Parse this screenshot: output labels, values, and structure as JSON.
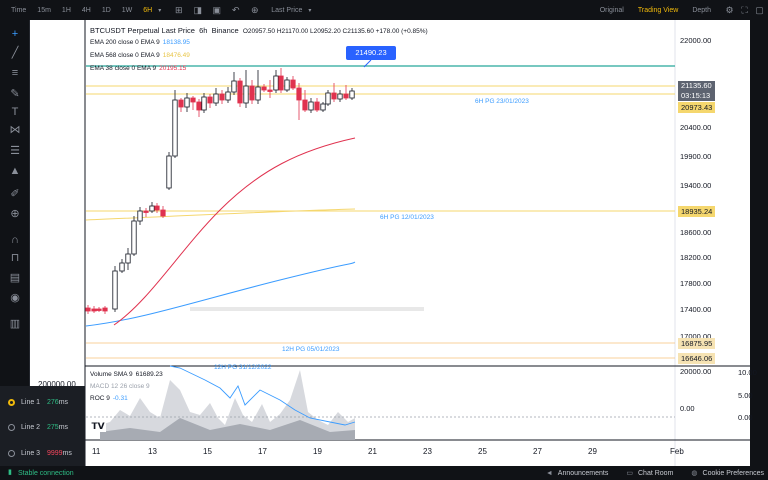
{
  "toolbar": {
    "timeframes": [
      "Time",
      "15m",
      "1H",
      "4H",
      "1D",
      "1W",
      "6H"
    ],
    "active_timeframe": "6H",
    "price_mode": "Last Price",
    "views": [
      "Original",
      "Trading View",
      "Depth"
    ],
    "active_view": "Trading View",
    "icons": [
      "chevron-down-icon",
      "bar-style-icon",
      "indicators-icon",
      "camera-icon",
      "undo-icon",
      "add-icon",
      "chevron-down-icon",
      "settings-icon",
      "fullscreen-icon",
      "screenshot-icon"
    ]
  },
  "left_tools": [
    "crosshair-icon",
    "trendline-icon",
    "fib-icon",
    "brush-icon",
    "text-icon",
    "pattern-icon",
    "measure-icon",
    "prediction-icon",
    "ruler-icon",
    "zoom-icon",
    "magnet-icon",
    "lock-icon",
    "lock-drawings-icon",
    "eye-icon",
    "trash-icon"
  ],
  "chart": {
    "title": "BTCUSDT Perpetual Last Price",
    "interval": "6h",
    "exchange": "Binance",
    "ohlc": "O20957.50  H21170.00  L20952.20  C21135.60  +178.00 (+0.85%)",
    "ema_lines": [
      {
        "label": "EMA 200 close 0 EMA 9",
        "value": "18138.95",
        "color": "#3b9cff"
      },
      {
        "label": "EMA 568 close 0 EMA 9",
        "value": "18476.49",
        "color": "#f5d76e"
      },
      {
        "label": "EMA 38 close 0 EMA 9",
        "value": "20195.15",
        "color": "#e0324f"
      }
    ],
    "marker_label": "21490.23",
    "price_axis": [
      "22000.00",
      "20400.00",
      "19900.00",
      "19400.00",
      "18600.00",
      "18200.00",
      "17800.00",
      "17400.00",
      "17000.00",
      "20000.00"
    ],
    "price_tags": [
      {
        "value": "21135.60",
        "sub": "03:15:13",
        "color": "#5d6370",
        "text": "#ffffff"
      },
      {
        "value": "20973.43",
        "color": "#f5d76e"
      },
      {
        "value": "18935.24",
        "color": "#f5d76e"
      },
      {
        "value": "16875.95",
        "color": "#f6e3b3"
      },
      {
        "value": "16646.06",
        "color": "#f6e3b3"
      }
    ],
    "level_labels": [
      "6H PG 23/01/2023",
      "6H PG 12/01/2023",
      "12H PG 05/01/2023",
      "12H PG 31/12/2022"
    ],
    "x_axis": [
      "11",
      "13",
      "15",
      "17",
      "19",
      "21",
      "23",
      "25",
      "27",
      "29",
      "Feb"
    ],
    "left_edge_value": "200000.00"
  },
  "subpanes": {
    "volume": {
      "label": "Volume SMA 9",
      "value": "61689.23"
    },
    "macd": {
      "label": "MACD 12 26 close 9"
    },
    "roc": {
      "label": "ROC 9",
      "value": "-0.31"
    },
    "right_axis": [
      "10.00",
      "5.00",
      "0.00"
    ],
    "inner_axis": "0.00",
    "logo": "tradingview-logo"
  },
  "lines_panel": [
    {
      "label": "Line 1",
      "value": "276",
      "unit": "ms",
      "selected": true,
      "status": "good"
    },
    {
      "label": "Line 2",
      "value": "275",
      "unit": "ms",
      "selected": false,
      "status": "good"
    },
    {
      "label": "Line 3",
      "value": "9999",
      "unit": "ms",
      "selected": false,
      "status": "bad"
    }
  ],
  "status": {
    "connection": "Stable connection",
    "items": [
      "Announcements",
      "Chat Room",
      "Cookie Preferences"
    ]
  }
}
